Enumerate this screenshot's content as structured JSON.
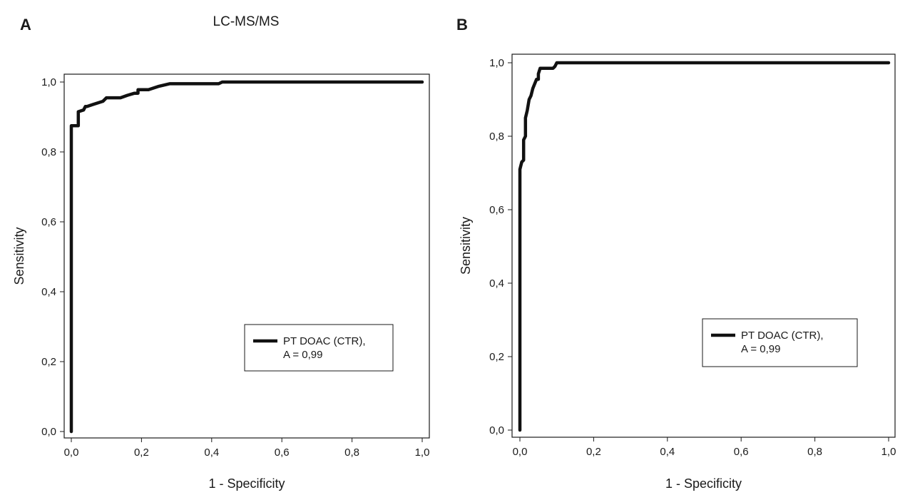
{
  "chart_data": [
    {
      "type": "line",
      "panel_label": "A",
      "title": "LC-MS/MS",
      "xlabel": "1 - Specificity",
      "ylabel": "Sensitivity",
      "xlim": [
        0,
        1
      ],
      "ylim": [
        0,
        1
      ],
      "xticks": [
        "0,0",
        "0,2",
        "0,4",
        "0,6",
        "0,8",
        "1,0"
      ],
      "yticks": [
        "0,0",
        "0,2",
        "0,4",
        "0,6",
        "0,8",
        "1,0"
      ],
      "grid": false,
      "legend_position": "bottom-right",
      "legend": [
        "PT DOAC (CTR),",
        "A = 0,99"
      ],
      "series": [
        {
          "name": "PT DOAC (CTR),",
          "x": [
            0,
            0,
            0.02,
            0.02,
            0.035,
            0.04,
            0.045,
            0.06,
            0.09,
            0.1,
            0.14,
            0.16,
            0.18,
            0.19,
            0.19,
            0.22,
            0.25,
            0.28,
            0.42,
            0.43,
            1.0
          ],
          "y": [
            0,
            0.875,
            0.875,
            0.915,
            0.92,
            0.93,
            0.93,
            0.935,
            0.945,
            0.955,
            0.955,
            0.962,
            0.968,
            0.968,
            0.978,
            0.978,
            0.988,
            0.995,
            0.995,
            1.0,
            1.0
          ]
        }
      ]
    },
    {
      "type": "line",
      "panel_label": "B",
      "title": "",
      "xlabel": "1 - Specificity",
      "ylabel": "Sensitivity",
      "xlim": [
        0,
        1
      ],
      "ylim": [
        0,
        1
      ],
      "xticks": [
        "0,0",
        "0,2",
        "0,4",
        "0,6",
        "0,8",
        "1,0"
      ],
      "yticks": [
        "0,0",
        "0,2",
        "0,4",
        "0,6",
        "0,8",
        "1,0"
      ],
      "grid": false,
      "legend_position": "bottom-right",
      "legend": [
        "PT DOAC (CTR),",
        "A = 0,99"
      ],
      "series": [
        {
          "name": "PT DOAC (CTR),",
          "x": [
            0,
            0,
            0.005,
            0.01,
            0.01,
            0.015,
            0.015,
            0.02,
            0.025,
            0.03,
            0.035,
            0.045,
            0.05,
            0.05,
            0.055,
            0.09,
            0.095,
            0.1,
            1.0
          ],
          "y": [
            0,
            0.71,
            0.73,
            0.735,
            0.79,
            0.8,
            0.85,
            0.87,
            0.9,
            0.91,
            0.93,
            0.955,
            0.955,
            0.97,
            0.985,
            0.985,
            0.99,
            1.0,
            1.0
          ]
        }
      ]
    }
  ]
}
